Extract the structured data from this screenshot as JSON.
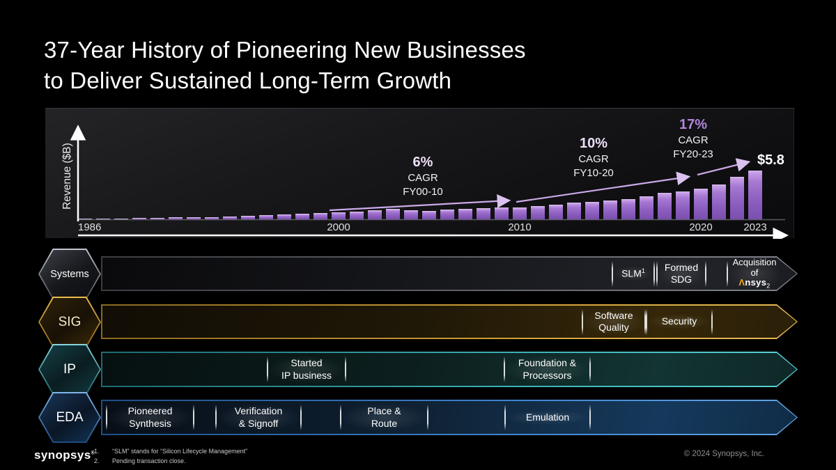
{
  "title": {
    "line1": "37-Year History of Pioneering New Businesses",
    "line2": "to Deliver Sustained Long-Term Growth"
  },
  "chart_data": {
    "type": "bar",
    "title": "Synopsys revenue history 1986-2023",
    "ylabel": "Revenue ($B)",
    "xlabel": "",
    "x_tick_labels": [
      "1986",
      "2000",
      "2010",
      "2020",
      "2023"
    ],
    "years": [
      1986,
      1987,
      1988,
      1989,
      1990,
      1991,
      1992,
      1993,
      1994,
      1995,
      1996,
      1997,
      1998,
      1999,
      2000,
      2001,
      2002,
      2003,
      2004,
      2005,
      2006,
      2007,
      2008,
      2009,
      2010,
      2011,
      2012,
      2013,
      2014,
      2015,
      2016,
      2017,
      2018,
      2019,
      2020,
      2021,
      2022,
      2023
    ],
    "values": [
      0.01,
      0.03,
      0.06,
      0.09,
      0.13,
      0.17,
      0.21,
      0.25,
      0.3,
      0.35,
      0.45,
      0.55,
      0.66,
      0.74,
      0.78,
      0.91,
      1.03,
      1.18,
      1.09,
      0.99,
      1.1,
      1.21,
      1.33,
      1.36,
      1.38,
      1.54,
      1.76,
      1.96,
      2.06,
      2.24,
      2.42,
      2.72,
      3.12,
      3.36,
      3.69,
      4.2,
      5.08,
      5.84
    ],
    "ylim": [
      0,
      6.5
    ],
    "grid": false,
    "legend": "none",
    "bar_color_top": "#cba4e9",
    "bar_color_bottom": "#7a4fae",
    "end_value_label": "$5.8",
    "annotations": [
      {
        "pct": "6%",
        "line2": "CAGR",
        "line3": "FY00-10"
      },
      {
        "pct": "10%",
        "line2": "CAGR",
        "line3": "FY10-20"
      },
      {
        "pct": "17%",
        "line2": "CAGR",
        "line3": "FY20-23"
      }
    ]
  },
  "bands": [
    {
      "hex_label": "Systems",
      "accent": "#9aa0ab",
      "milestones": [
        {
          "line1": "SLM",
          "sup": "1"
        },
        {
          "line1": "Formed",
          "line2": "SDG"
        },
        {
          "line1": "Acquisition",
          "line2": "of",
          "logo_mark": "Λ",
          "logo_rest": "nsys",
          "sub": "2"
        }
      ]
    },
    {
      "hex_label": "SIG",
      "accent": "#cf9a33",
      "milestones": [
        {
          "line1": "Software",
          "line2": "Quality"
        },
        {
          "line1": "Security"
        }
      ]
    },
    {
      "hex_label": "IP",
      "accent": "#3ab3b8",
      "milestones": [
        {
          "line1": "Started",
          "line2": "IP business"
        },
        {
          "line1": "Foundation &",
          "line2": "Processors"
        }
      ]
    },
    {
      "hex_label": "EDA",
      "accent": "#3f86d2",
      "milestones": [
        {
          "line1": "Pioneered",
          "line2": "Synthesis"
        },
        {
          "line1": "Verification",
          "line2": "& Signoff"
        },
        {
          "line1": "Place &",
          "line2": "Route"
        },
        {
          "line1": "Emulation"
        }
      ]
    }
  ],
  "footer": {
    "logo": "synopsys",
    "logo_reg": "®",
    "footnotes": [
      {
        "num": "1.",
        "text": "“SLM” stands for “Silicon Lifecycle Management”"
      },
      {
        "num": "2.",
        "text": "Pending transaction close."
      }
    ],
    "copyright": "© 2024 Synopsys, Inc."
  }
}
